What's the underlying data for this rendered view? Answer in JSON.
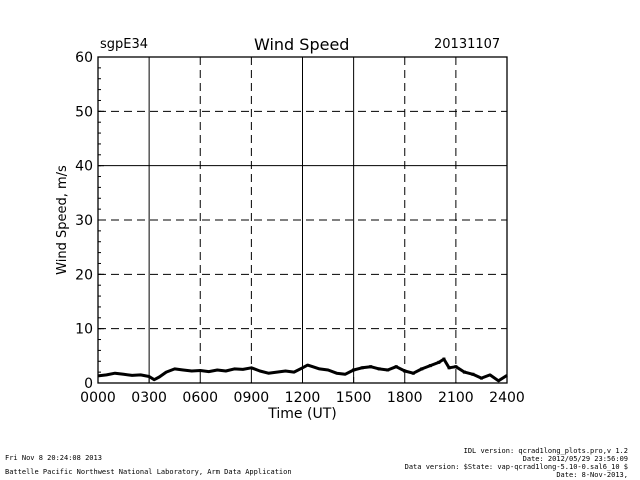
{
  "header": {
    "station": "sgpE34",
    "title": "Wind Speed",
    "date": "20131107"
  },
  "footer": {
    "left_line1": "Fri Nov  8 20:24:08 2013",
    "left_line2": "Battelle Pacific Northwest National Laboratory, Arm Data Application",
    "right_line1": "IDL version: qcrad1long_plots.pro,v 1.2",
    "right_line2": "Date: 2012/05/29 23:56:09",
    "right_line3": "Data version: $State: vap-qcrad1long-5.10-0.sal6_10 $",
    "right_line4": "Date: 8-Nov-2013,"
  },
  "chart_data": {
    "type": "line",
    "title": "Wind Speed",
    "xlabel": "Time (UT)",
    "ylabel": "Wind Speed, m/s",
    "xlim": [
      0,
      24
    ],
    "ylim": [
      0,
      60
    ],
    "xticks": [
      "0000",
      "0300",
      "0600",
      "0900",
      "1200",
      "1500",
      "1800",
      "2100",
      "2400"
    ],
    "yticks": [
      "0",
      "10",
      "20",
      "30",
      "40",
      "50",
      "60"
    ],
    "grid": true,
    "series": [
      {
        "name": "Wind Speed",
        "x": [
          0,
          0.5,
          1,
          1.5,
          2,
          2.5,
          3,
          3.3,
          3.6,
          4,
          4.5,
          5,
          5.5,
          6,
          6.5,
          7,
          7.5,
          8,
          8.5,
          9,
          9.5,
          10,
          10.5,
          11,
          11.5,
          12,
          12.3,
          12.6,
          13,
          13.5,
          14,
          14.5,
          15,
          15.5,
          16,
          16.5,
          17,
          17.5,
          18,
          18.5,
          19,
          19.5,
          20,
          20.3,
          20.6,
          21,
          21.5,
          22,
          22.5,
          23,
          23.5,
          24
        ],
        "y": [
          1.3,
          1.5,
          1.8,
          1.6,
          1.4,
          1.5,
          1.2,
          0.6,
          1.1,
          2.0,
          2.6,
          2.4,
          2.2,
          2.3,
          2.1,
          2.4,
          2.2,
          2.6,
          2.5,
          2.8,
          2.2,
          1.8,
          2.0,
          2.2,
          2.0,
          2.8,
          3.3,
          3.0,
          2.6,
          2.4,
          1.8,
          1.6,
          2.4,
          2.8,
          3.0,
          2.6,
          2.4,
          3.0,
          2.2,
          1.8,
          2.6,
          3.2,
          3.8,
          4.4,
          2.8,
          3.0,
          2.0,
          1.6,
          0.9,
          1.5,
          0.4,
          1.4
        ]
      }
    ]
  }
}
